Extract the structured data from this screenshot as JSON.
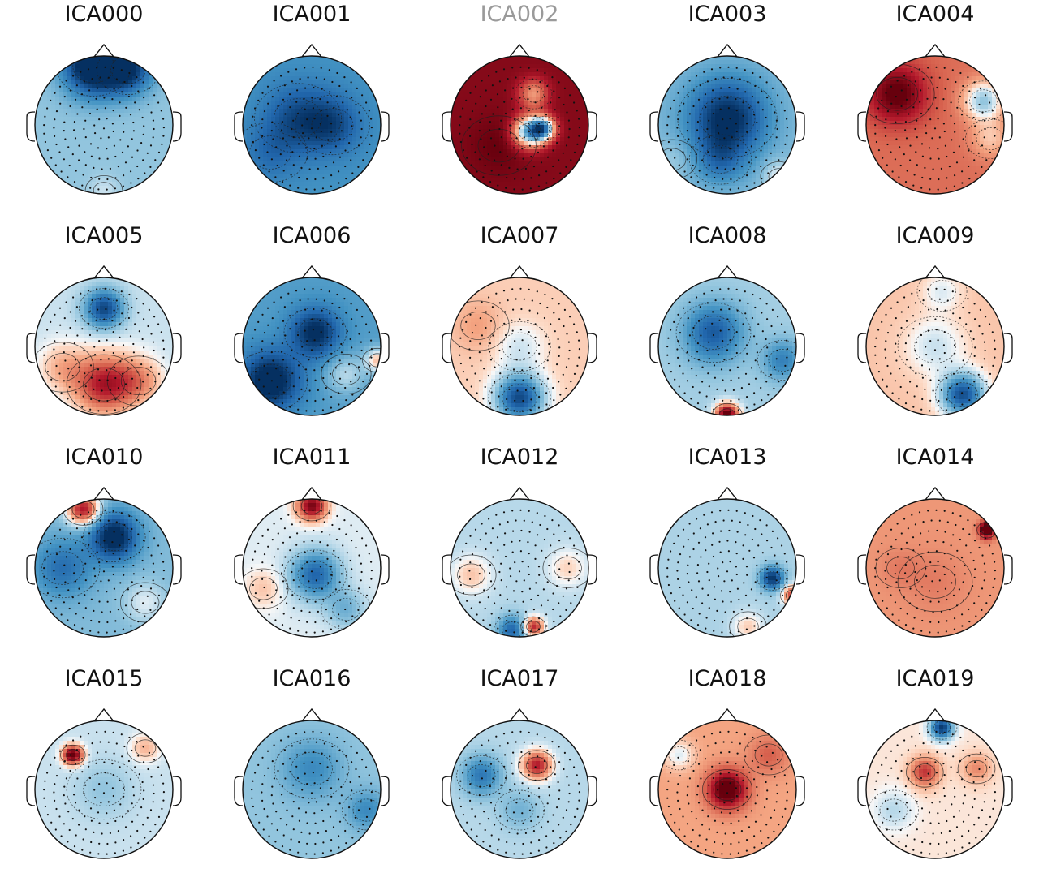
{
  "figure": {
    "type": "ica-topomap-grid",
    "colormap": "RdBu_r",
    "colors": {
      "negative": "#08306b",
      "neutral": "#f7f7f7",
      "positive": "#67000d",
      "excluded_title": "#9a9a9a"
    },
    "components": [
      {
        "label": "ICA000",
        "excluded": false,
        "base": -0.25,
        "blobs": [
          [
            -0.15,
            -0.85,
            -1.0,
            0.3
          ],
          [
            0.35,
            -0.8,
            -0.7,
            0.25
          ],
          [
            0,
            0.95,
            0.15,
            0.15
          ]
        ]
      },
      {
        "label": "ICA001",
        "excluded": false,
        "base": -0.5,
        "blobs": [
          [
            -0.2,
            -0.1,
            -0.35,
            0.35
          ],
          [
            0.3,
            0.0,
            -0.35,
            0.3
          ],
          [
            -0.6,
            0.4,
            -0.2,
            0.3
          ]
        ]
      },
      {
        "label": "ICA002",
        "excluded": true,
        "base": 0.9,
        "blobs": [
          [
            0.15,
            0.1,
            -1.4,
            0.16
          ],
          [
            0.35,
            0.05,
            -1.2,
            0.12
          ],
          [
            0.2,
            -0.45,
            -0.6,
            0.15
          ],
          [
            -0.3,
            0.3,
            0.1,
            0.3
          ]
        ]
      },
      {
        "label": "ICA003",
        "excluded": false,
        "base": -0.3,
        "blobs": [
          [
            0.0,
            -0.1,
            -0.75,
            0.4
          ],
          [
            -0.1,
            0.5,
            -0.3,
            0.25
          ],
          [
            0.75,
            0.75,
            0.3,
            0.15
          ],
          [
            -0.8,
            0.5,
            0.1,
            0.2
          ]
        ]
      },
      {
        "label": "ICA004",
        "excluded": false,
        "base": 0.45,
        "blobs": [
          [
            -0.55,
            -0.45,
            0.6,
            0.3
          ],
          [
            0.7,
            -0.35,
            -0.7,
            0.2
          ],
          [
            0.8,
            0.2,
            -0.3,
            0.2
          ]
        ]
      },
      {
        "label": "ICA005",
        "excluded": false,
        "base": -0.1,
        "blobs": [
          [
            0.0,
            -0.55,
            -0.8,
            0.2
          ],
          [
            0.0,
            0.55,
            0.85,
            0.3
          ],
          [
            -0.6,
            0.3,
            0.3,
            0.25
          ],
          [
            0.5,
            0.5,
            0.4,
            0.25
          ]
        ]
      },
      {
        "label": "ICA006",
        "excluded": false,
        "base": -0.45,
        "blobs": [
          [
            -0.6,
            0.5,
            -0.7,
            0.3
          ],
          [
            0.05,
            -0.2,
            -0.6,
            0.25
          ],
          [
            0.95,
            0.2,
            0.6,
            0.12
          ],
          [
            0.5,
            0.4,
            0.3,
            0.2
          ]
        ]
      },
      {
        "label": "ICA007",
        "excluded": false,
        "base": 0.12,
        "blobs": [
          [
            0.0,
            0.75,
            -1.0,
            0.25
          ],
          [
            0.0,
            0.0,
            -0.2,
            0.25
          ],
          [
            -0.6,
            -0.3,
            0.15,
            0.25
          ]
        ]
      },
      {
        "label": "ICA008",
        "excluded": false,
        "base": -0.2,
        "blobs": [
          [
            -0.2,
            -0.2,
            -0.6,
            0.3
          ],
          [
            0.0,
            1.0,
            1.3,
            0.12
          ],
          [
            0.8,
            0.2,
            -0.4,
            0.2
          ]
        ]
      },
      {
        "label": "ICA009",
        "excluded": false,
        "base": 0.15,
        "blobs": [
          [
            0.4,
            0.7,
            -1.0,
            0.22
          ],
          [
            0.0,
            0.0,
            -0.25,
            0.3
          ],
          [
            0.1,
            -0.8,
            -0.2,
            0.2
          ]
        ]
      },
      {
        "label": "ICA010",
        "excluded": false,
        "base": -0.3,
        "blobs": [
          [
            -0.3,
            -0.85,
            1.1,
            0.16
          ],
          [
            0.15,
            -0.45,
            -0.8,
            0.25
          ],
          [
            -0.6,
            0.0,
            -0.4,
            0.3
          ],
          [
            0.6,
            0.5,
            0.25,
            0.2
          ]
        ]
      },
      {
        "label": "ICA011",
        "excluded": false,
        "base": -0.05,
        "blobs": [
          [
            0.0,
            -0.9,
            1.0,
            0.15
          ],
          [
            0.05,
            0.1,
            -0.7,
            0.25
          ],
          [
            0.5,
            0.6,
            -0.3,
            0.2
          ],
          [
            -0.7,
            0.3,
            0.2,
            0.2
          ]
        ]
      },
      {
        "label": "ICA012",
        "excluded": false,
        "base": -0.15,
        "blobs": [
          [
            0.2,
            0.85,
            0.9,
            0.1
          ],
          [
            -0.1,
            0.9,
            -0.6,
            0.15
          ],
          [
            -0.7,
            0.1,
            0.3,
            0.2
          ],
          [
            0.7,
            0.0,
            0.25,
            0.2
          ]
        ]
      },
      {
        "label": "ICA013",
        "excluded": false,
        "base": -0.18,
        "blobs": [
          [
            0.65,
            0.15,
            -0.8,
            0.12
          ],
          [
            0.95,
            0.4,
            0.8,
            0.1
          ],
          [
            0.3,
            0.85,
            0.3,
            0.15
          ]
        ]
      },
      {
        "label": "ICA014",
        "excluded": false,
        "base": 0.3,
        "blobs": [
          [
            0.75,
            -0.55,
            1.1,
            0.08
          ],
          [
            0.0,
            0.2,
            0.1,
            0.3
          ],
          [
            -0.5,
            0.0,
            0.1,
            0.2
          ]
        ]
      },
      {
        "label": "ICA015",
        "excluded": false,
        "base": -0.1,
        "blobs": [
          [
            -0.45,
            -0.5,
            1.2,
            0.1
          ],
          [
            0.6,
            -0.6,
            0.3,
            0.15
          ],
          [
            0.0,
            0.0,
            -0.15,
            0.3
          ]
        ]
      },
      {
        "label": "ICA016",
        "excluded": false,
        "base": -0.25,
        "blobs": [
          [
            0.0,
            -0.3,
            -0.3,
            0.3
          ],
          [
            0.8,
            0.3,
            -0.3,
            0.2
          ]
        ]
      },
      {
        "label": "ICA017",
        "excluded": false,
        "base": -0.15,
        "blobs": [
          [
            0.25,
            -0.35,
            0.9,
            0.15
          ],
          [
            -0.55,
            -0.2,
            -0.5,
            0.2
          ],
          [
            0.0,
            0.3,
            -0.2,
            0.2
          ]
        ]
      },
      {
        "label": "ICA018",
        "excluded": false,
        "base": 0.25,
        "blobs": [
          [
            0.0,
            0.0,
            0.9,
            0.2
          ],
          [
            -0.7,
            -0.5,
            -0.3,
            0.15
          ],
          [
            0.6,
            -0.5,
            0.25,
            0.2
          ]
        ]
      },
      {
        "label": "ICA019",
        "excluded": false,
        "base": 0.05,
        "blobs": [
          [
            0.1,
            -0.9,
            -1.0,
            0.12
          ],
          [
            -0.15,
            -0.25,
            0.6,
            0.15
          ],
          [
            0.6,
            -0.3,
            0.3,
            0.15
          ],
          [
            -0.6,
            0.3,
            -0.2,
            0.2
          ]
        ]
      }
    ]
  }
}
